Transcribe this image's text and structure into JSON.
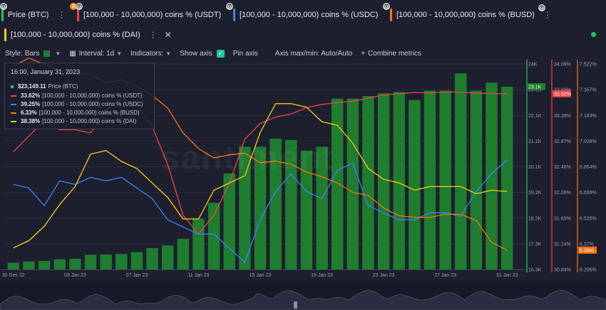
{
  "tabs": [
    {
      "label": "Price (BTC)",
      "color": "#22c55e",
      "badge_icon": "bitcoin-badge-icon"
    },
    {
      "label": "[100,000 - 10,000,000) coins % (USDT)",
      "color": "#ef4444"
    },
    {
      "label": "[100,000 - 10,000,000) coins % (USDC)",
      "color": "#3b82f6"
    },
    {
      "label": "[100,000 - 10,000,000) coins % (BUSD)",
      "color": "#f97316"
    },
    {
      "label": "[100,000 - 10,000,000) coins % (DAI)",
      "color": "#facc15"
    }
  ],
  "toolbar": {
    "style_label": "Style: Bars",
    "interval_label": "Interval: 1d",
    "indicators_label": "Indicators:",
    "show_axis_label": "Show axis",
    "pin_axis_label": "Pin axis",
    "axis_max_min_label": "Axis max/min: Auto/Auto",
    "combine_label": "Combine metrics"
  },
  "legend": {
    "date": "16:00, January 31, 2023",
    "rows": [
      {
        "value": "$23,149.11",
        "label": "Price (BTC)",
        "color": "#22c55e"
      },
      {
        "value": "33.62%",
        "label": "[100,000  - 10,000,000) coins % (USDT)",
        "color": "#ef4444"
      },
      {
        "value": "39.25%",
        "label": "[100,000  - 10,000,000) coins % (USDC)",
        "color": "#3b82f6"
      },
      {
        "value": "6.33%",
        "label": "[100,000  - 10,000,000) coins % (BUSD)",
        "color": "#f97316"
      },
      {
        "value": "38.38%",
        "label": "[100,000  - 10,000,000) coins % (DAI)",
        "color": "#facc15"
      }
    ]
  },
  "watermark": "santiment",
  "chart_data": {
    "type": "bar",
    "x_tick_labels": [
      "30 Dec 22",
      "03 Jan 23",
      "07 Jan 23",
      "11 Jan 23",
      "15 Jan 23",
      "19 Jan 23",
      "23 Jan 23",
      "27 Jan 23",
      "31 Jan 23"
    ],
    "x": [
      "30 Dec 22",
      "31 Dec 22",
      "01 Jan 23",
      "02 Jan 23",
      "03 Jan 23",
      "04 Jan 23",
      "05 Jan 23",
      "06 Jan 23",
      "07 Jan 23",
      "08 Jan 23",
      "09 Jan 23",
      "10 Jan 23",
      "11 Jan 23",
      "12 Jan 23",
      "13 Jan 23",
      "14 Jan 23",
      "15 Jan 23",
      "16 Jan 23",
      "17 Jan 23",
      "18 Jan 23",
      "19 Jan 23",
      "20 Jan 23",
      "21 Jan 23",
      "22 Jan 23",
      "23 Jan 23",
      "24 Jan 23",
      "25 Jan 23",
      "26 Jan 23",
      "27 Jan 23",
      "28 Jan 23",
      "29 Jan 23",
      "30 Jan 23",
      "31 Jan 23"
    ],
    "series": [
      {
        "name": "Price (BTC)",
        "type": "bar",
        "axis": "price",
        "color": "#1e7d2e",
        "values": [
          16550,
          16600,
          16620,
          16680,
          16700,
          16850,
          16860,
          16880,
          16950,
          17100,
          17200,
          17450,
          18200,
          18800,
          19900,
          20900,
          20900,
          21200,
          21150,
          20750,
          20900,
          22700,
          22700,
          22800,
          22900,
          22950,
          22650,
          23000,
          23000,
          23650,
          23000,
          23300,
          23149
        ]
      },
      {
        "name": "[100,000 - 10,000,000) coins % (USDT)",
        "type": "line",
        "axis": "usdt",
        "color": "#ef4444",
        "values": [
          32.7,
          32.95,
          33.2,
          33.05,
          33.05,
          33.0,
          33.35,
          33.55,
          33.45,
          33.1,
          32.5,
          31.7,
          31.4,
          31.7,
          32.2,
          32.9,
          33.15,
          33.25,
          33.3,
          33.4,
          33.45,
          33.48,
          33.5,
          33.55,
          33.6,
          33.62,
          33.64,
          33.63,
          33.65,
          33.64,
          33.63,
          33.62,
          33.62
        ]
      },
      {
        "name": "[100,000 - 10,000,000) coins % (USDC)",
        "type": "line",
        "axis": "usdc",
        "color": "#3b82f6",
        "values": [
          38.9,
          38.85,
          38.6,
          38.95,
          38.9,
          39.0,
          38.95,
          39.0,
          38.85,
          38.7,
          38.4,
          38.3,
          38.2,
          38.2,
          38.0,
          37.8,
          38.4,
          38.8,
          39.05,
          38.8,
          38.7,
          39.1,
          39.2,
          38.6,
          38.5,
          38.4,
          38.4,
          38.5,
          38.5,
          38.45,
          38.8,
          39.05,
          39.25
        ]
      },
      {
        "name": "[100,000 - 10,000,000) coins % (BUSD)",
        "type": "line",
        "axis": "busd",
        "color": "#f97316",
        "values": [
          7.51,
          7.56,
          7.52,
          7.48,
          7.46,
          7.46,
          7.4,
          7.42,
          7.38,
          7.32,
          7.24,
          7.08,
          6.98,
          6.92,
          6.94,
          6.95,
          6.89,
          6.9,
          6.88,
          6.83,
          6.8,
          6.76,
          6.7,
          6.68,
          6.6,
          6.55,
          6.54,
          6.54,
          6.56,
          6.56,
          6.52,
          6.38,
          6.33
        ]
      },
      {
        "name": "[100,000 - 10,000,000) coins % (DAI)",
        "type": "line",
        "axis": "dai",
        "color": "#facc15",
        "values": [
          37.6,
          37.7,
          37.9,
          38.2,
          38.45,
          38.9,
          38.95,
          38.8,
          38.7,
          38.5,
          38.3,
          38.0,
          38.0,
          38.4,
          38.5,
          38.6,
          39.2,
          39.6,
          39.6,
          39.55,
          39.35,
          39.3,
          39.05,
          38.7,
          38.55,
          38.5,
          38.4,
          38.45,
          38.45,
          38.45,
          38.35,
          38.4,
          38.38
        ]
      }
    ],
    "axes": [
      {
        "id": "price",
        "ticks": [
          "24K",
          "23.1K",
          "22.1K",
          "21.1K",
          "20.1K",
          "19.2K",
          "18.2K",
          "17.3K",
          "16.3K"
        ],
        "range": [
          16300,
          24000
        ],
        "current_label": "23.1K",
        "current_color": "#1e7d2e"
      },
      {
        "id": "usdt",
        "ticks": [
          "34.09%",
          "33.68%",
          "33.28%",
          "32.87%",
          "32.46%",
          "32.06%",
          "31.65%",
          "31.24%",
          "30.84%"
        ],
        "range": [
          30.84,
          34.09
        ],
        "current_label": "33.62%",
        "current_color": "#ef4444"
      },
      {
        "id": "busd",
        "ticks": [
          "7.522%",
          "7.357%",
          "7.193%",
          "7.028%",
          "6.864%",
          "6.699%",
          "6.535%",
          "6.37%",
          "6.206%"
        ],
        "range": [
          6.206,
          7.522
        ],
        "current_label": "6.33%",
        "current_color": "#f97316"
      }
    ],
    "hidden_axes": {
      "usdc": [
        37.7,
        40.6
      ],
      "dai": [
        37.3,
        40.15
      ]
    }
  }
}
